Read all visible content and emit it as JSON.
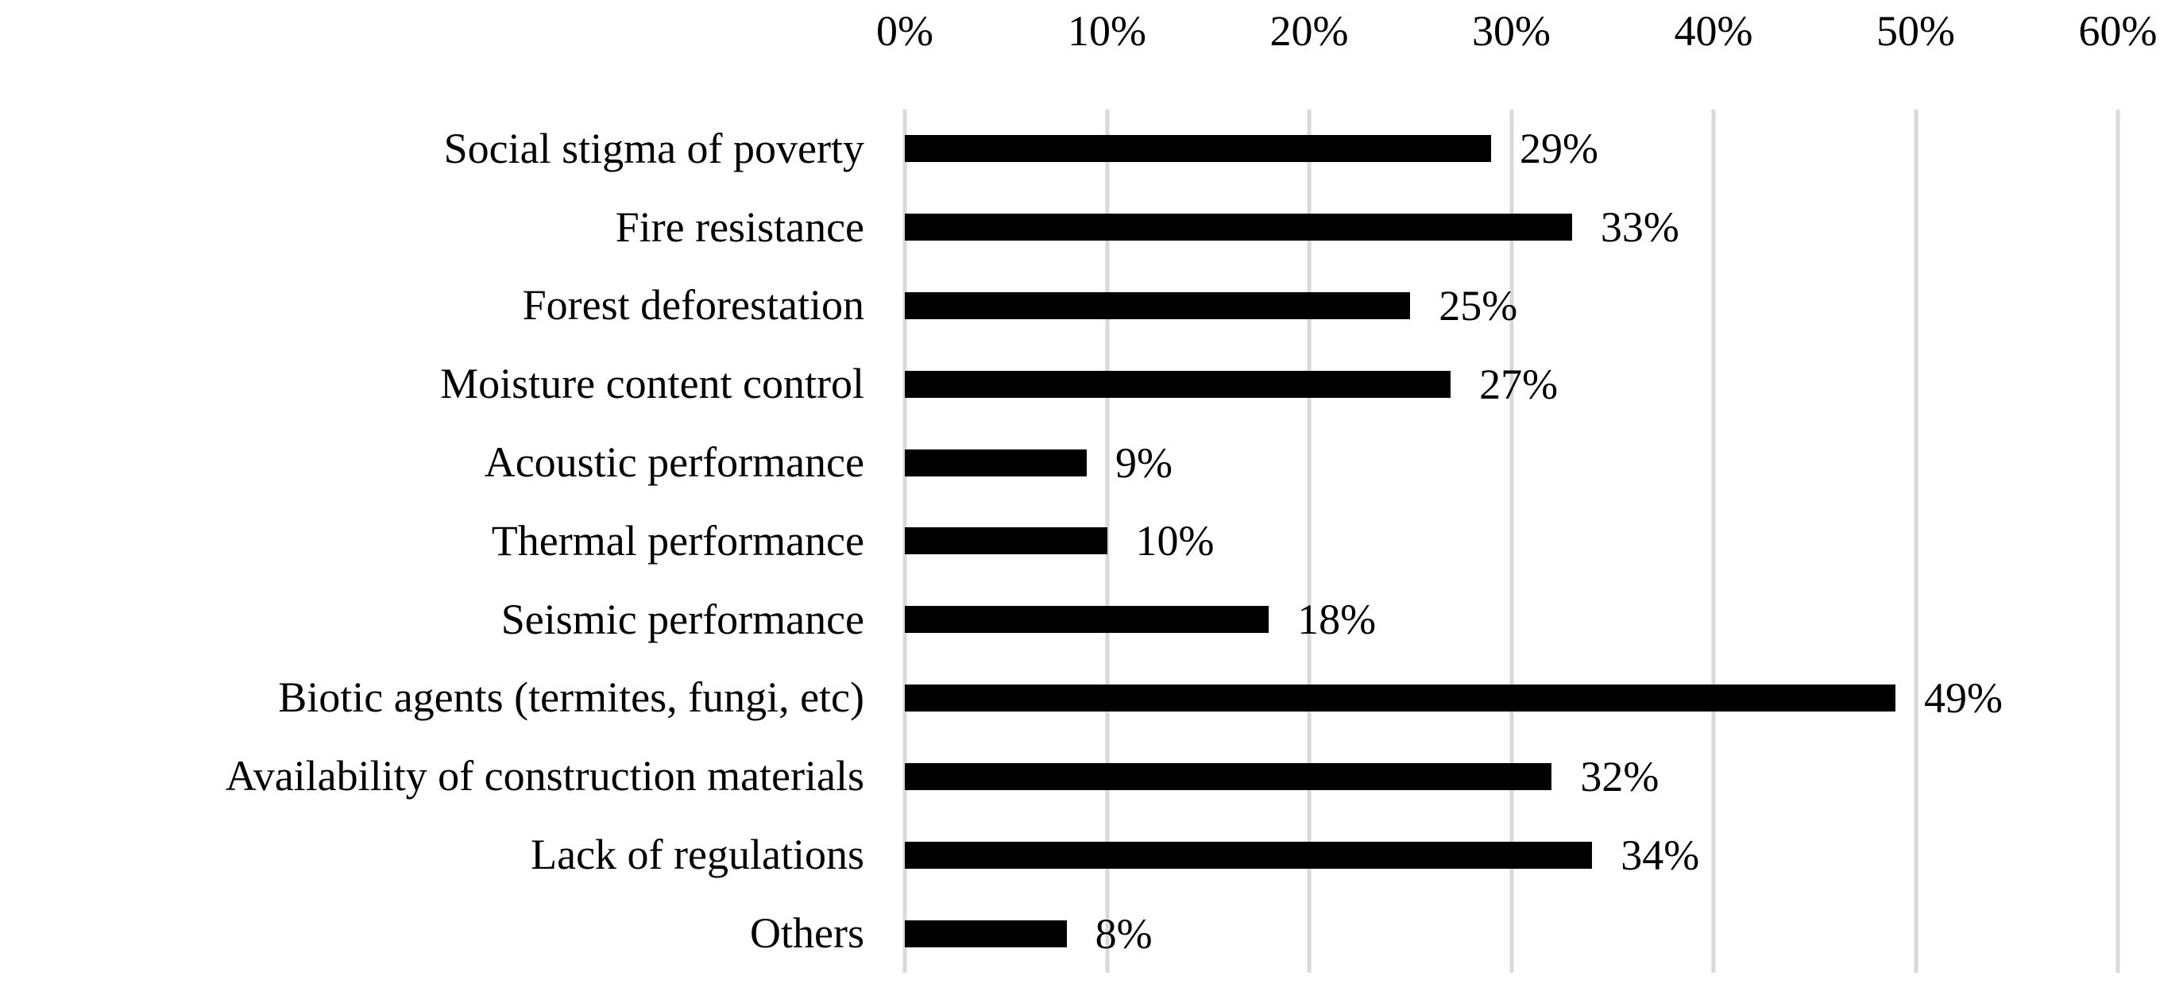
{
  "chart_data": {
    "type": "bar",
    "orientation": "horizontal",
    "title": "",
    "xlabel": "",
    "ylabel": "",
    "xlim": [
      0,
      60
    ],
    "x_tick_labels": [
      "0%",
      "10%",
      "20%",
      "30%",
      "40%",
      "50%",
      "60%"
    ],
    "x_tick_values": [
      0,
      10,
      20,
      30,
      40,
      50,
      60
    ],
    "grid": "vertical gridlines on, full plot height",
    "legend": "none",
    "categories": [
      "Social stigma of poverty",
      "Fire resistance",
      "Forest deforestation",
      "Moisture content control",
      "Acoustic performance",
      "Thermal performance",
      "Seismic performance",
      "Biotic agents (termites, fungi, etc)",
      "Availability of construction materials",
      "Lack of regulations",
      "Others"
    ],
    "values": [
      29,
      33,
      25,
      27,
      9,
      10,
      18,
      49,
      32,
      34,
      8
    ],
    "data_labels": [
      "29%",
      "33%",
      "25%",
      "27%",
      "9%",
      "10%",
      "18%",
      "49%",
      "32%",
      "34%",
      "8%"
    ],
    "colors": {
      "bar": "#000000",
      "gridline": "#d9d9d9",
      "text": "#000000",
      "background": "#ffffff"
    }
  }
}
